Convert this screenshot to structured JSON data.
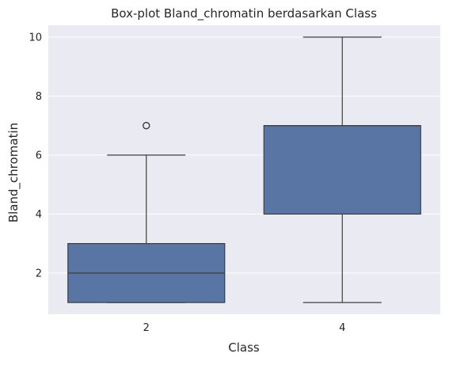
{
  "chart_data": {
    "type": "box",
    "title": "Box-plot Bland_chromatin berdasarkan Class",
    "xlabel": "Class",
    "ylabel": "Bland_chromatin",
    "categories": [
      "2",
      "4"
    ],
    "boxes": [
      {
        "category": "2",
        "whisker_low": 1,
        "q1": 1,
        "median": 2,
        "q3": 3,
        "whisker_high": 6,
        "outliers": [
          7
        ]
      },
      {
        "category": "4",
        "whisker_low": 1,
        "q1": 4,
        "median": 7,
        "q3": 7,
        "whisker_high": 10,
        "outliers": []
      }
    ],
    "ylim": [
      0.6,
      10.4
    ],
    "yticks": [
      "2",
      "4",
      "6",
      "8",
      "10"
    ],
    "grid": true,
    "colors": {
      "background": "#EAEAF2",
      "box_fill": "#5975A4",
      "line": "#3E3E3E",
      "grid": "#FFFFFF"
    }
  }
}
